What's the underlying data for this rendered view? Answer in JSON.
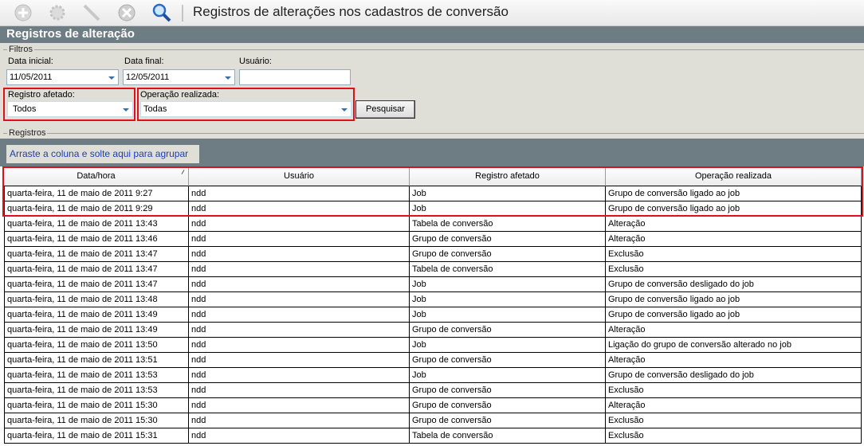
{
  "toolbar": {
    "title": "Registros de alterações nos cadastros de conversão"
  },
  "panel": {
    "title": "Registros de alteração"
  },
  "filters": {
    "legend": "Filtros",
    "data_inicial": {
      "label": "Data inicial:",
      "value": "11/05/2011"
    },
    "data_final": {
      "label": "Data final:",
      "value": "12/05/2011"
    },
    "usuario": {
      "label": "Usuário:"
    },
    "registro_afetado": {
      "label": "Registro afetado:",
      "value": "Todos"
    },
    "operacao_realizada": {
      "label": "Operação realizada:",
      "value": "Todas"
    },
    "button": "Pesquisar"
  },
  "registros": {
    "legend": "Registros",
    "group_hint": "Arraste a coluna e solte aqui para agrupar"
  },
  "table": {
    "columns": [
      "Data/hora",
      "Usuário",
      "Registro afetado",
      "Operação realizada"
    ],
    "rows": [
      [
        "quarta-feira, 11 de maio de 2011 9:27",
        "ndd",
        "Job",
        "Grupo de conversão ligado ao job"
      ],
      [
        "quarta-feira, 11 de maio de 2011 9:29",
        "ndd",
        "Job",
        "Grupo de conversão ligado ao job"
      ],
      [
        "quarta-feira, 11 de maio de 2011 13:43",
        "ndd",
        "Tabela de conversão",
        "Alteração"
      ],
      [
        "quarta-feira, 11 de maio de 2011 13:46",
        "ndd",
        "Grupo de conversão",
        "Alteração"
      ],
      [
        "quarta-feira, 11 de maio de 2011 13:47",
        "ndd",
        "Grupo de conversão",
        "Exclusão"
      ],
      [
        "quarta-feira, 11 de maio de 2011 13:47",
        "ndd",
        "Tabela de conversão",
        "Exclusão"
      ],
      [
        "quarta-feira, 11 de maio de 2011 13:47",
        "ndd",
        "Job",
        "Grupo de conversão desligado do job"
      ],
      [
        "quarta-feira, 11 de maio de 2011 13:48",
        "ndd",
        "Job",
        "Grupo de conversão ligado ao job"
      ],
      [
        "quarta-feira, 11 de maio de 2011 13:49",
        "ndd",
        "Job",
        "Grupo de conversão ligado ao job"
      ],
      [
        "quarta-feira, 11 de maio de 2011 13:49",
        "ndd",
        "Grupo de conversão",
        "Alteração"
      ],
      [
        "quarta-feira, 11 de maio de 2011 13:50",
        "ndd",
        "Job",
        "Ligação do grupo de conversão alterado no job"
      ],
      [
        "quarta-feira, 11 de maio de 2011 13:51",
        "ndd",
        "Grupo de conversão",
        "Alteração"
      ],
      [
        "quarta-feira, 11 de maio de 2011 13:53",
        "ndd",
        "Job",
        "Grupo de conversão desligado do job"
      ],
      [
        "quarta-feira, 11 de maio de 2011 13:53",
        "ndd",
        "Grupo de conversão",
        "Exclusão"
      ],
      [
        "quarta-feira, 11 de maio de 2011 15:30",
        "ndd",
        "Grupo de conversão",
        "Alteração"
      ],
      [
        "quarta-feira, 11 de maio de 2011 15:30",
        "ndd",
        "Grupo de conversão",
        "Exclusão"
      ],
      [
        "quarta-feira, 11 de maio de 2011 15:31",
        "ndd",
        "Tabela de conversão",
        "Exclusão"
      ]
    ]
  }
}
